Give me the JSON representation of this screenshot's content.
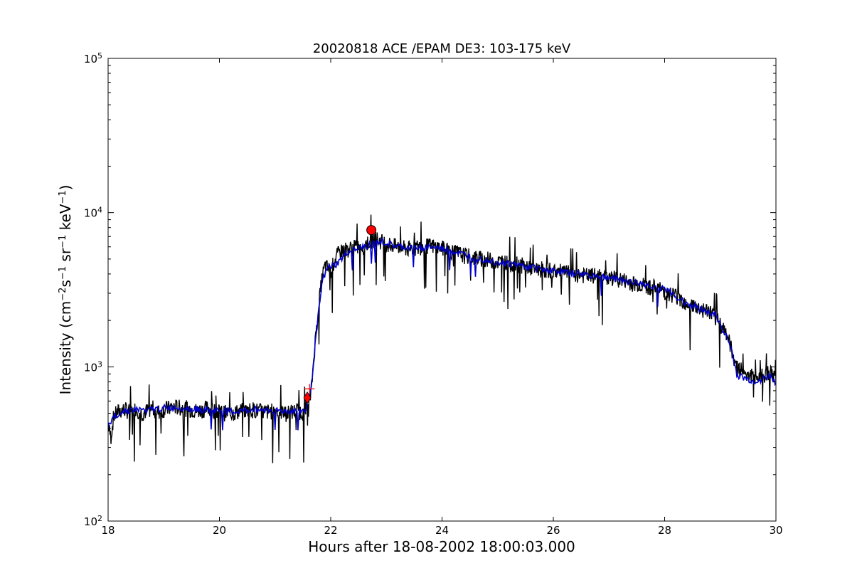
{
  "chart_data": {
    "type": "line",
    "title": "20020818 ACE /EPAM DE3: 103-175 keV",
    "xlabel": "Hours after 18-08-2002 18:00:03.000",
    "ylabel_main": "Intensity (cm",
    "ylabel_parts": [
      {
        "text": "Intensity (cm",
        "sup": false
      },
      {
        "text": "−2",
        "sup": true
      },
      {
        "text": "s",
        "sup": false
      },
      {
        "text": "−1",
        "sup": true
      },
      {
        "text": " sr",
        "sup": false
      },
      {
        "text": "−1",
        "sup": true
      },
      {
        "text": " keV",
        "sup": false
      },
      {
        "text": "−1",
        "sup": true
      },
      {
        "text": ")",
        "sup": false
      }
    ],
    "xlim": [
      18,
      30
    ],
    "ylim": [
      100,
      100000
    ],
    "yscale": "log",
    "grid": false,
    "x_ticks": [
      {
        "value": 18,
        "label": "18"
      },
      {
        "value": 20,
        "label": "20"
      },
      {
        "value": 22,
        "label": "22"
      },
      {
        "value": 24,
        "label": "24"
      },
      {
        "value": 26,
        "label": "26"
      },
      {
        "value": 28,
        "label": "28"
      },
      {
        "value": 30,
        "label": "30"
      }
    ],
    "y_ticks": [
      {
        "value": 100,
        "base": "10",
        "exp": "2"
      },
      {
        "value": 1000,
        "base": "10",
        "exp": "3"
      },
      {
        "value": 10000,
        "base": "10",
        "exp": "4"
      },
      {
        "value": 100000,
        "base": "10",
        "exp": "5"
      }
    ],
    "series_colors": {
      "raw": "#000000",
      "smoothed": "#0000cc",
      "marker": "#ff0000"
    },
    "series": [
      {
        "role": "raw",
        "x": [
          18.0,
          18.05,
          18.1,
          18.2,
          18.3,
          18.4,
          18.5,
          18.6,
          18.7,
          18.8,
          18.9,
          19.0,
          19.2,
          19.4,
          19.6,
          19.8,
          20.0,
          20.2,
          20.4,
          20.6,
          20.8,
          21.0,
          21.2,
          21.4,
          21.5,
          21.6,
          21.65,
          21.7,
          21.75,
          21.8,
          21.85,
          21.9,
          22.0,
          22.1,
          22.2,
          22.4,
          22.6,
          22.8,
          23.0,
          23.2,
          23.4,
          23.6,
          23.8,
          24.0,
          24.2,
          24.4,
          24.6,
          24.8,
          25.0,
          25.2,
          25.4,
          25.6,
          25.8,
          26.0,
          26.2,
          26.4,
          26.6,
          26.8,
          27.0,
          27.2,
          27.4,
          27.6,
          27.8,
          28.0,
          28.2,
          28.4,
          28.6,
          28.8,
          29.0,
          29.1,
          29.2,
          29.3,
          29.5,
          29.7,
          29.9,
          30.0
        ],
        "y": [
          420,
          350,
          480,
          520,
          530,
          510,
          540,
          500,
          520,
          540,
          510,
          530,
          550,
          540,
          520,
          540,
          510,
          500,
          520,
          530,
          510,
          520,
          500,
          520,
          510,
          540,
          700,
          1200,
          1900,
          2800,
          3900,
          4500,
          4200,
          5200,
          5700,
          5900,
          6200,
          6800,
          6300,
          6000,
          5800,
          6000,
          6100,
          5900,
          5600,
          5300,
          5100,
          5000,
          4800,
          4700,
          4600,
          4400,
          4300,
          4200,
          4100,
          4000,
          3900,
          3900,
          3800,
          3700,
          3500,
          3400,
          3300,
          3100,
          2900,
          2600,
          2400,
          2300,
          1900,
          1700,
          1300,
          1000,
          900,
          850,
          950,
          800
        ]
      },
      {
        "role": "smoothed",
        "x": [
          18.0,
          18.1,
          18.3,
          18.5,
          18.7,
          19.0,
          19.3,
          19.6,
          20.0,
          20.3,
          20.6,
          21.0,
          21.3,
          21.55,
          21.65,
          21.75,
          21.85,
          21.95,
          22.1,
          22.3,
          22.6,
          22.9,
          23.2,
          23.5,
          23.8,
          24.1,
          24.5,
          25.0,
          25.5,
          26.0,
          26.5,
          27.0,
          27.5,
          28.0,
          28.3,
          28.6,
          28.9,
          29.1,
          29.2,
          29.3,
          29.6,
          29.9,
          30.0
        ],
        "y": [
          400,
          480,
          520,
          530,
          520,
          540,
          545,
          530,
          520,
          510,
          530,
          520,
          515,
          520,
          760,
          1800,
          3600,
          4400,
          4600,
          5500,
          6000,
          6500,
          6000,
          5900,
          6000,
          5700,
          5200,
          4800,
          4500,
          4200,
          4000,
          3800,
          3500,
          3200,
          2700,
          2400,
          2200,
          1600,
          1300,
          880,
          800,
          870,
          780
        ]
      }
    ],
    "markers": [
      {
        "shape": "diamond",
        "x": 21.58,
        "y": 630
      },
      {
        "shape": "plus",
        "x": 21.62,
        "y": 720
      },
      {
        "shape": "circle",
        "x": 22.73,
        "y": 7700
      }
    ]
  }
}
